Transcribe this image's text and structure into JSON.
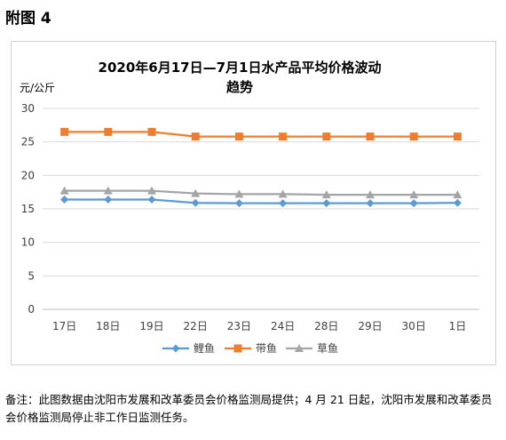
{
  "heading": "附图 4",
  "note": "备注：此图数据由沈阳市发展和改革委员会价格监测局提供；4 月 21 日起，沈阳市发展和改革委员会价格监测局停止非工作日监测任务。",
  "chart_data": {
    "type": "line",
    "title_line1": "2020年6月17日—7月1日水产品平均价格波动",
    "title_line2": "趋势",
    "ylabel": "元/公斤",
    "xlabel": "",
    "ylim": [
      0,
      30
    ],
    "yticks": [
      0,
      5,
      10,
      15,
      20,
      25,
      30
    ],
    "grid": true,
    "legend_position": "bottom",
    "categories": [
      "17日",
      "18日",
      "19日",
      "22日",
      "23日",
      "24日",
      "28日",
      "29日",
      "30日",
      "1日"
    ],
    "series": [
      {
        "name": "鲤鱼",
        "color": "#5B9BD5",
        "marker": "diamond",
        "values": [
          16.4,
          16.4,
          16.4,
          15.9,
          15.85,
          15.85,
          15.85,
          15.85,
          15.85,
          15.9
        ]
      },
      {
        "name": "带鱼",
        "color": "#ED7D31",
        "marker": "square",
        "values": [
          26.5,
          26.5,
          26.5,
          25.8,
          25.8,
          25.8,
          25.8,
          25.8,
          25.8,
          25.8
        ]
      },
      {
        "name": "草鱼",
        "color": "#A5A5A5",
        "marker": "triangle",
        "values": [
          17.7,
          17.7,
          17.7,
          17.3,
          17.2,
          17.2,
          17.1,
          17.1,
          17.1,
          17.1
        ]
      }
    ]
  }
}
